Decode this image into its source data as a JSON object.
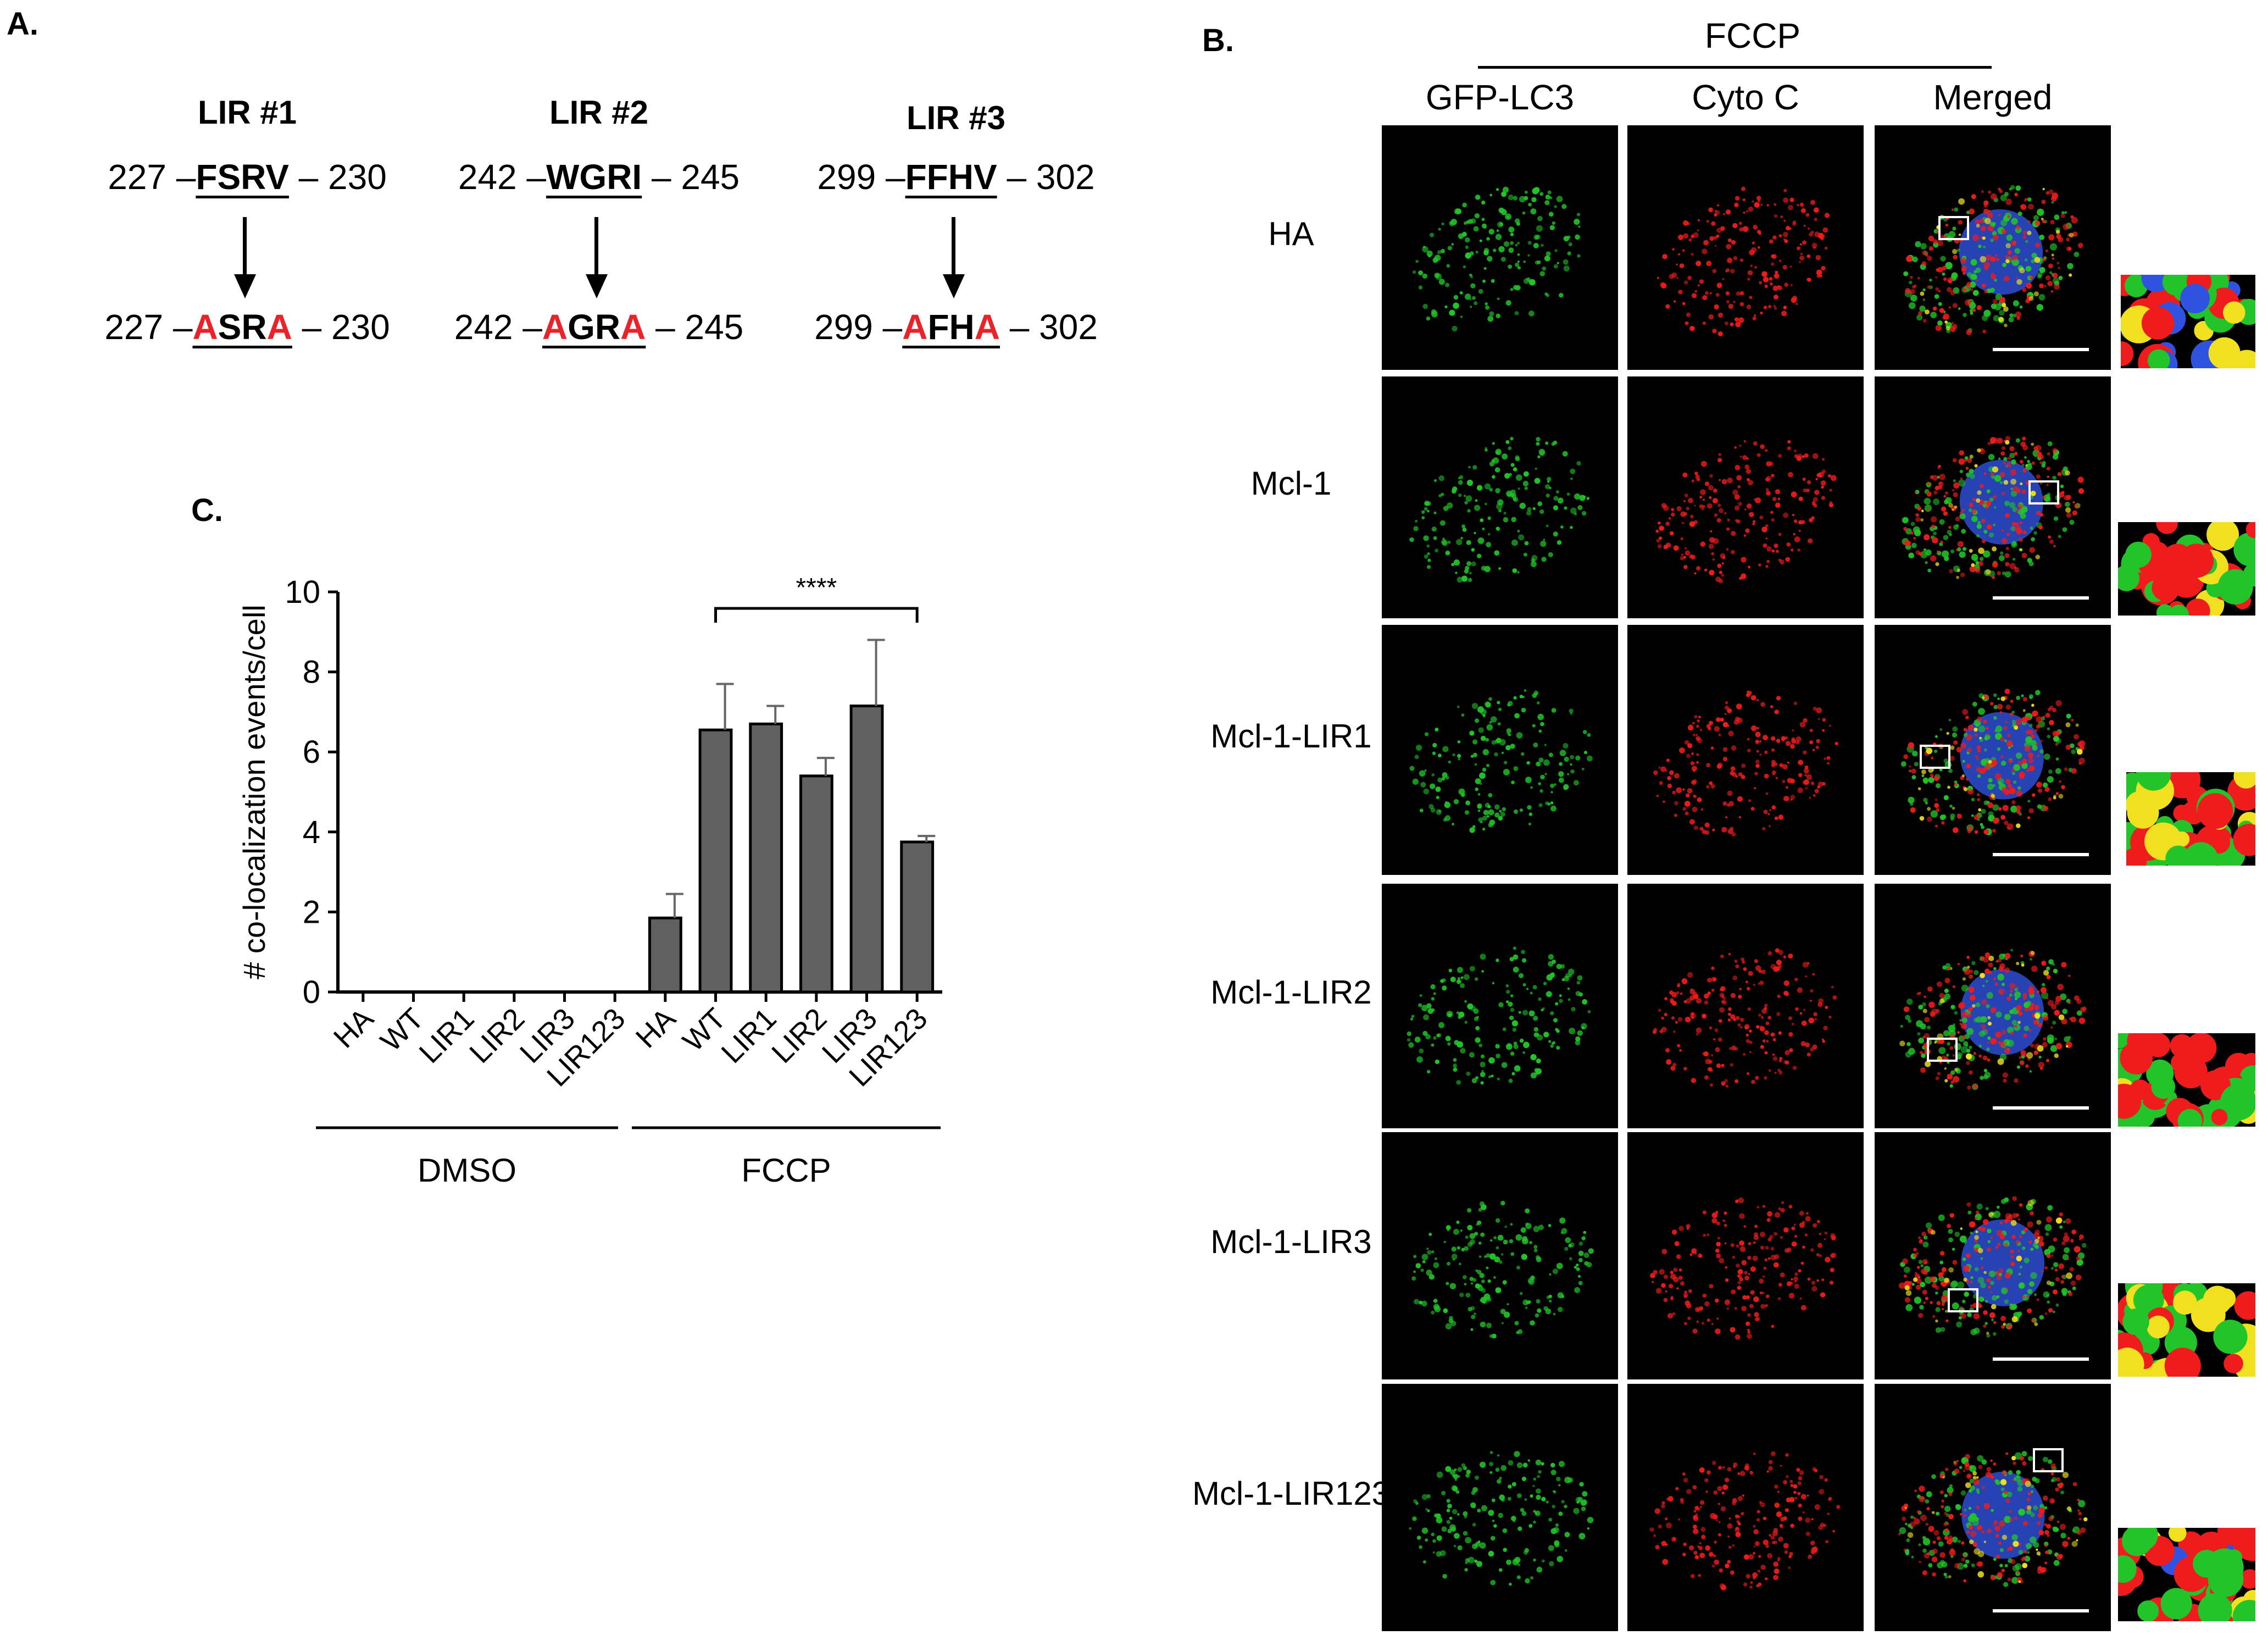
{
  "panel_labels": {
    "a": "A.",
    "b": "B.",
    "c": "C."
  },
  "panel_a": {
    "motifs": [
      {
        "title": "LIR #1",
        "start": "227",
        "end": "230",
        "original": "FSRV",
        "mutant": [
          {
            "t": "A",
            "mut": true
          },
          {
            "t": "SR",
            "mut": false
          },
          {
            "t": "A",
            "mut": true
          }
        ]
      },
      {
        "title": "LIR #2",
        "start": "242",
        "end": "245",
        "original": "WGRI",
        "mutant": [
          {
            "t": "A",
            "mut": true
          },
          {
            "t": "GR",
            "mut": false
          },
          {
            "t": "A",
            "mut": true
          }
        ]
      },
      {
        "title": "LIR #3",
        "start": "299",
        "end": "302",
        "original": "FFHV",
        "mutant": [
          {
            "t": "A",
            "mut": true
          },
          {
            "t": "FH",
            "mut": false
          },
          {
            "t": "A",
            "mut": true
          }
        ]
      }
    ]
  },
  "panel_b": {
    "treatment": "FCCP",
    "columns": [
      "GFP-LC3",
      "Cyto C",
      "Merged"
    ],
    "rows": [
      "HA",
      "Mcl-1",
      "Mcl-1-LIR1",
      "Mcl-1-LIR2",
      "Mcl-1-LIR3",
      "Mcl-1-LIR123"
    ],
    "channel_colors": {
      "gfp": "#22c42a",
      "cytoc": "#ee1c1c",
      "dapi": "#2f52e0",
      "overlap": "#f0e020"
    }
  },
  "chart_data": {
    "type": "bar",
    "ylabel": "# co-localization events/cell",
    "xlabel": "",
    "ylim": [
      0,
      10
    ],
    "yticks": [
      "0",
      "2",
      "4",
      "6",
      "8",
      "10"
    ],
    "categories": [
      "HA",
      "WT",
      "LIR1",
      "LIR2",
      "LIR3",
      "LIR123",
      "HA",
      "WT",
      "LIR1",
      "LIR2",
      "LIR3",
      "LIR123"
    ],
    "values": [
      0,
      0,
      0,
      0,
      0,
      0,
      1.85,
      6.55,
      6.7,
      5.4,
      7.15,
      3.75
    ],
    "errors": [
      0,
      0,
      0,
      0,
      0,
      0,
      0.6,
      1.15,
      0.45,
      0.45,
      1.65,
      0.15
    ],
    "groups": [
      {
        "name": "DMSO",
        "from": 0,
        "to": 5
      },
      {
        "name": "FCCP",
        "from": 6,
        "to": 11
      }
    ],
    "significance": {
      "label": "****",
      "from": 7,
      "to": 11
    },
    "bar_color": "#606060"
  }
}
